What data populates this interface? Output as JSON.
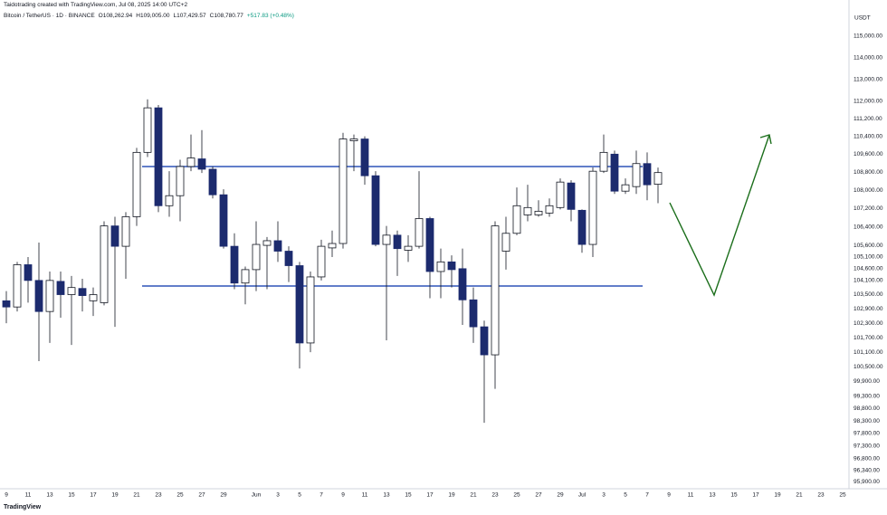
{
  "chart_data": {
    "type": "candlestick",
    "watermark": "Taidotrading created with TradingView.com, Jul 08, 2025 14:00 UTC+2",
    "title": "Bitcoin / TetherUS · 1D · BINANCE",
    "ohlc_legend": [
      "O108,262.94",
      "H109,005.00",
      "L107,429.57",
      "C108,780.77",
      "+517.83 (+0.48%)"
    ],
    "y_unit": "USDT",
    "brand": "TradingView",
    "log_scale": true,
    "grid": false,
    "up_color": "#ffffff",
    "down_color": "#1c2b6e",
    "border_color": "#131722",
    "ylim": [
      95730,
      116280
    ],
    "yticks": [
      {
        "value": 115000,
        "label": "115,000.00"
      },
      {
        "value": 114000,
        "label": "114,000.00"
      },
      {
        "value": 113000,
        "label": "113,000.00"
      },
      {
        "value": 112000,
        "label": "112,000.00"
      },
      {
        "value": 111200,
        "label": "111,200.00"
      },
      {
        "value": 110400,
        "label": "110,400.00"
      },
      {
        "value": 109600,
        "label": "109,600.00"
      },
      {
        "value": 108800,
        "label": "108,800.00"
      },
      {
        "value": 108000,
        "label": "108,000.00"
      },
      {
        "value": 107200,
        "label": "107,200.00"
      },
      {
        "value": 106400,
        "label": "106,400.00"
      },
      {
        "value": 105600,
        "label": "105,600.00"
      },
      {
        "value": 105100,
        "label": "105,100.00"
      },
      {
        "value": 104600,
        "label": "104,600.00"
      },
      {
        "value": 104100,
        "label": "104,100.00"
      },
      {
        "value": 103500,
        "label": "103,500.00"
      },
      {
        "value": 102900,
        "label": "102,900.00"
      },
      {
        "value": 102300,
        "label": "102,300.00"
      },
      {
        "value": 101700,
        "label": "101,700.00"
      },
      {
        "value": 101100,
        "label": "101,100.00"
      },
      {
        "value": 100500,
        "label": "100,500.00"
      },
      {
        "value": 99900,
        "label": "99,900.00"
      },
      {
        "value": 99300,
        "label": "99,300.00"
      },
      {
        "value": 98800,
        "label": "98,800.00"
      },
      {
        "value": 98300,
        "label": "98,300.00"
      },
      {
        "value": 97800,
        "label": "97,800.00"
      },
      {
        "value": 97300,
        "label": "97,300.00"
      },
      {
        "value": 96800,
        "label": "96,800.00"
      },
      {
        "value": 96340,
        "label": "96,340.00"
      },
      {
        "value": 95900,
        "label": "95,900.00"
      }
    ],
    "categories": [
      "9",
      null,
      "11",
      null,
      "13",
      null,
      "15",
      null,
      "17",
      null,
      "19",
      null,
      "21",
      null,
      "23",
      null,
      "25",
      null,
      "27",
      null,
      "29",
      null,
      null,
      "Jun",
      null,
      "3",
      null,
      "5",
      null,
      "7",
      null,
      "9",
      null,
      "11",
      null,
      "13",
      null,
      "15",
      null,
      "17",
      null,
      "19",
      null,
      "21",
      null,
      "23",
      null,
      "25",
      null,
      "27",
      null,
      "29",
      null,
      "Jul",
      null,
      "3",
      null,
      "5",
      null,
      "7",
      null,
      "9",
      null,
      "11",
      null,
      "13",
      null,
      "15",
      null,
      "17",
      null,
      "19",
      null,
      "21",
      null,
      "23",
      null,
      "25"
    ],
    "open": [
      103240,
      102980,
      104770,
      104100,
      102790,
      104060,
      103500,
      103760,
      103240,
      103160,
      106440,
      105560,
      106840,
      109680,
      111690,
      107320,
      107760,
      109050,
      109390,
      108930,
      107800,
      105560,
      103990,
      104560,
      105600,
      105800,
      105350,
      104730,
      101480,
      104250,
      105490,
      105680,
      110200,
      110280,
      108640,
      105640,
      106040,
      105390,
      105560,
      106760,
      104480,
      104890,
      104600,
      103280,
      102150,
      100990,
      105350,
      106120,
      106920,
      106920,
      107000,
      107240,
      108320,
      107120,
      105640,
      108840,
      109600,
      107960,
      108160,
      109180,
      108262.94,
      null,
      null,
      null,
      null,
      null,
      null,
      null,
      null,
      null,
      null,
      null,
      null,
      null,
      null,
      null,
      null,
      null
    ],
    "high": [
      103650,
      104890,
      105100,
      105720,
      104480,
      104480,
      104290,
      104170,
      103800,
      106640,
      106840,
      107040,
      109880,
      112080,
      111820,
      108840,
      109350,
      110480,
      110680,
      109050,
      108040,
      106120,
      104690,
      106640,
      105960,
      106640,
      105560,
      104890,
      104480,
      105840,
      106240,
      110560,
      110480,
      110400,
      108840,
      106440,
      106240,
      106040,
      108840,
      106840,
      105460,
      105170,
      105460,
      103800,
      102410,
      106640,
      106840,
      108120,
      108240,
      107560,
      107640,
      108520,
      108440,
      107160,
      109010,
      110480,
      109760,
      108520,
      109760,
      109680,
      109005,
      null,
      null,
      null,
      null,
      null,
      null,
      null,
      null,
      null,
      null,
      null,
      null,
      null,
      null,
      null,
      null,
      null
    ],
    "low": [
      102300,
      102790,
      103160,
      100730,
      101480,
      102530,
      101400,
      102790,
      102600,
      103050,
      102150,
      104170,
      106440,
      109470,
      107040,
      106840,
      106640,
      108840,
      108760,
      107640,
      105460,
      103730,
      103090,
      103650,
      103730,
      104890,
      104030,
      100430,
      101100,
      104100,
      105100,
      105460,
      108840,
      108240,
      105560,
      101590,
      104290,
      104890,
      105460,
      103350,
      103350,
      103800,
      102230,
      101480,
      98230,
      99600,
      104560,
      106040,
      106640,
      106840,
      106840,
      107160,
      106640,
      105280,
      105100,
      108760,
      107840,
      107840,
      107840,
      107560,
      107429.57,
      null,
      null,
      null,
      null,
      null,
      null,
      null,
      null,
      null,
      null,
      null,
      null,
      null,
      null,
      null,
      null,
      null
    ],
    "close": [
      102980,
      104770,
      104100,
      102790,
      104100,
      103500,
      103800,
      103460,
      103500,
      106440,
      105560,
      106840,
      109680,
      111690,
      107320,
      107760,
      109050,
      109430,
      108930,
      107800,
      105560,
      103990,
      104560,
      105640,
      105800,
      105350,
      104730,
      101480,
      104250,
      105560,
      105680,
      110280,
      110280,
      108640,
      105640,
      106040,
      105460,
      105560,
      106760,
      104480,
      104890,
      104560,
      103280,
      102150,
      100990,
      106440,
      106120,
      107320,
      107240,
      107080,
      107320,
      108360,
      107160,
      105640,
      108840,
      109680,
      107960,
      108240,
      109180,
      108240,
      108780.77,
      null,
      null,
      null,
      null,
      null,
      null,
      null,
      null,
      null,
      null,
      null,
      null,
      null,
      null,
      null,
      null,
      null
    ]
  }
}
